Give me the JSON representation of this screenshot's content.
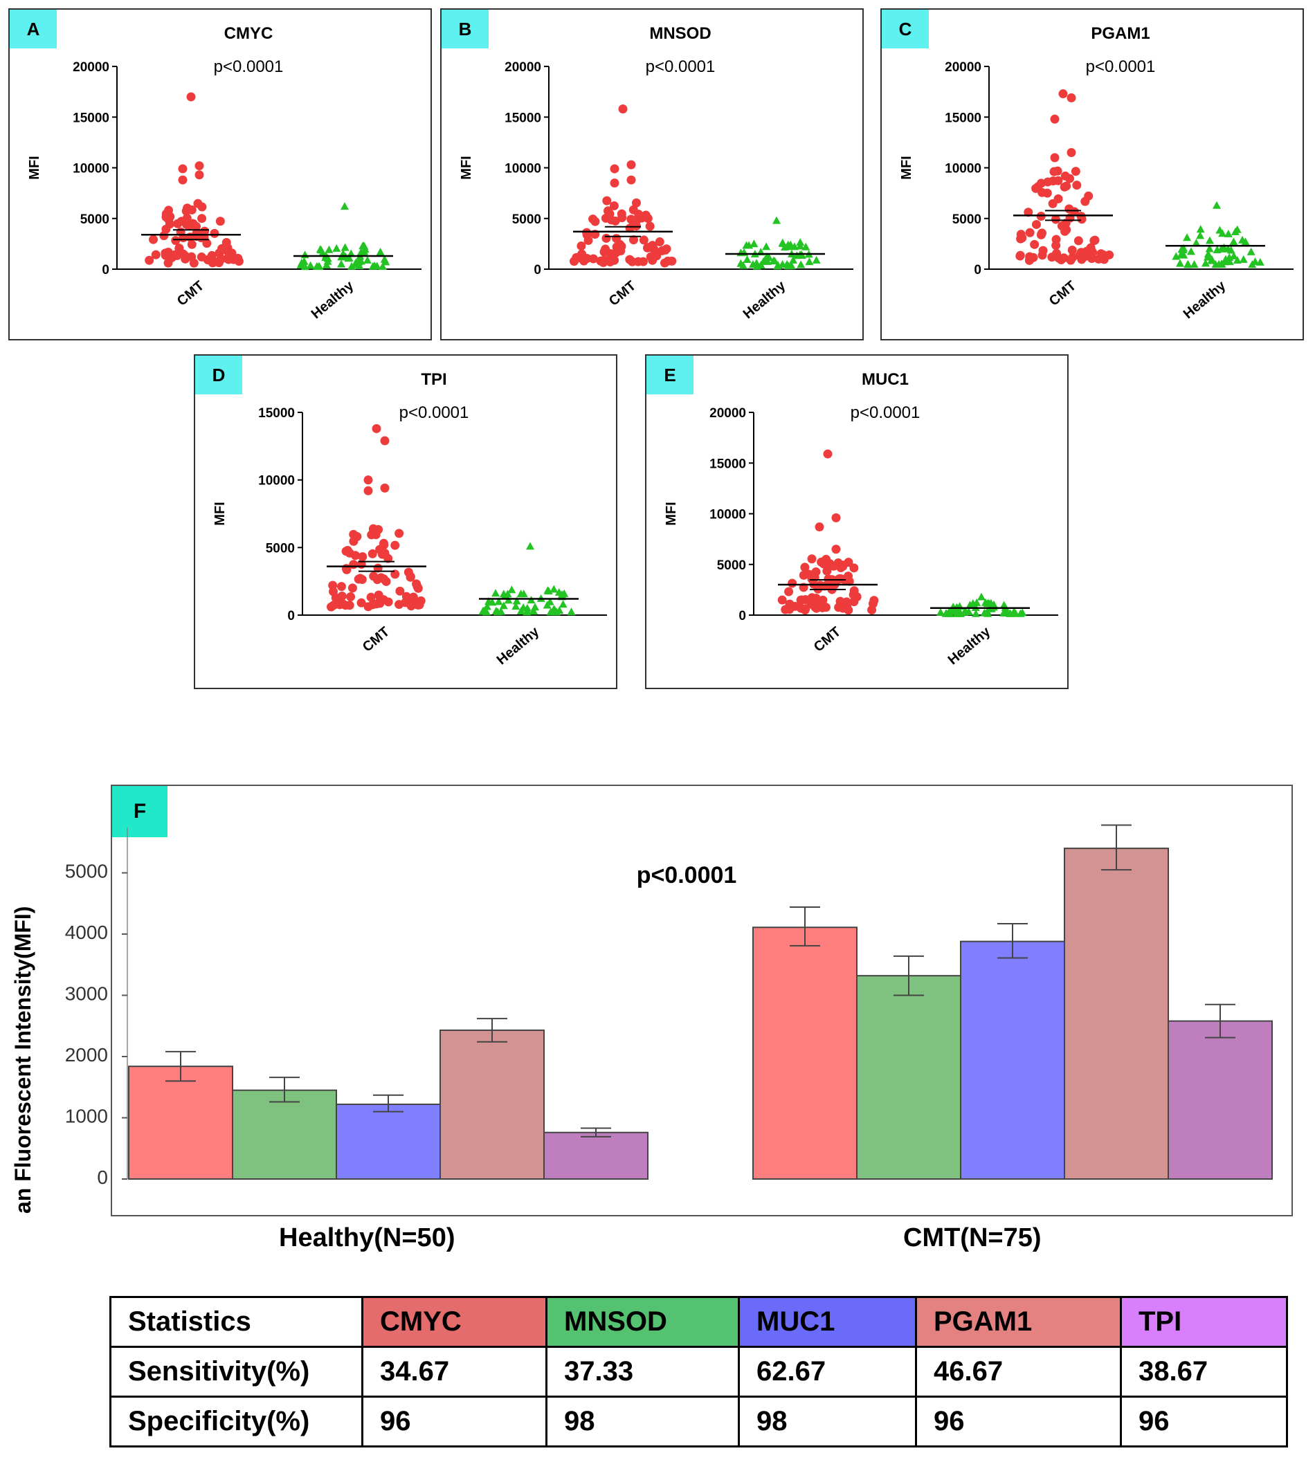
{
  "panels": [
    {
      "tag": "A",
      "title": "CMYC",
      "pvalue": "p<0.0001",
      "ylabel": "MFI",
      "yticks": [
        0,
        5000,
        10000,
        15000,
        20000
      ],
      "ymax": 20000,
      "groups": [
        "CMT",
        "Healthy"
      ],
      "cmt_mean": 3400,
      "healthy_mean": 1300,
      "cmt_outliers": [
        17000,
        10200,
        9900,
        9300,
        8800
      ],
      "healthy_max": 6200
    },
    {
      "tag": "B",
      "title": "MNSOD",
      "pvalue": "p<0.0001",
      "ylabel": "MFI",
      "yticks": [
        0,
        5000,
        10000,
        15000,
        20000
      ],
      "ymax": 20000,
      "groups": [
        "CMT",
        "Healthy"
      ],
      "cmt_mean": 3700,
      "healthy_mean": 1500,
      "cmt_outliers": [
        15800,
        10300,
        9900,
        8800,
        8500
      ],
      "healthy_max": 4800
    },
    {
      "tag": "C",
      "title": "PGAM1",
      "pvalue": "p<0.0001",
      "ylabel": "MFI",
      "yticks": [
        0,
        5000,
        10000,
        15000,
        20000
      ],
      "ymax": 20000,
      "groups": [
        "CMT",
        "Healthy"
      ],
      "cmt_mean": 5300,
      "healthy_mean": 2300,
      "cmt_outliers": [
        17300,
        16900,
        14800,
        11500,
        11000
      ],
      "healthy_max": 6300
    },
    {
      "tag": "D",
      "title": "TPI",
      "pvalue": "p<0.0001",
      "ylabel": "MFI",
      "yticks": [
        0,
        5000,
        10000,
        15000
      ],
      "ymax": 15000,
      "groups": [
        "CMT",
        "Healthy"
      ],
      "cmt_mean": 3600,
      "healthy_mean": 1200,
      "cmt_outliers": [
        13800,
        12900,
        10000,
        9400,
        9200
      ],
      "healthy_max": 5100
    },
    {
      "tag": "E",
      "title": "MUC1",
      "pvalue": "p<0.0001",
      "ylabel": "MFI",
      "yticks": [
        0,
        5000,
        10000,
        15000,
        20000
      ],
      "ymax": 20000,
      "groups": [
        "CMT",
        "Healthy"
      ],
      "cmt_mean": 3000,
      "healthy_mean": 700,
      "cmt_outliers": [
        15900,
        9600,
        8700,
        6500
      ],
      "healthy_max": 1800
    }
  ],
  "chart_data": {
    "type": "bar",
    "tag": "F",
    "pvalue": "p<0.0001",
    "ylabel": "Mean Fluorescent Intensity(MFI)",
    "ylim": [
      0,
      6000
    ],
    "yticks": [
      0,
      1000,
      2000,
      3000,
      4000,
      5000
    ],
    "groups": [
      "Healthy(N=50)",
      "CMT(N=75)"
    ],
    "series": [
      {
        "name": "CMYC",
        "color": "#ff7f7f",
        "values": [
          1840,
          4110
        ],
        "err_low": [
          1600,
          3810
        ],
        "err_high": [
          2080,
          4440
        ]
      },
      {
        "name": "MNSOD",
        "color": "#7fc17f",
        "values": [
          1450,
          3320
        ],
        "err_low": [
          1260,
          3000
        ],
        "err_high": [
          1660,
          3640
        ]
      },
      {
        "name": "MUC1",
        "color": "#7f7fff",
        "values": [
          1220,
          3880
        ],
        "err_low": [
          1100,
          3610
        ],
        "err_high": [
          1370,
          4170
        ]
      },
      {
        "name": "PGAM1",
        "color": "#d49393",
        "values": [
          2430,
          5400
        ],
        "err_low": [
          2240,
          5050
        ],
        "err_high": [
          2620,
          5780
        ]
      },
      {
        "name": "TPI",
        "color": "#bf7fbf",
        "values": [
          760,
          2580
        ],
        "err_low": [
          690,
          2310
        ],
        "err_high": [
          830,
          2850
        ]
      }
    ]
  },
  "stats_table": {
    "header": [
      "Statistics",
      "CMYC",
      "MNSOD",
      "MUC1",
      "PGAM1",
      "TPI"
    ],
    "header_colors": [
      "#ffffff",
      "#e46c6c",
      "#55c271",
      "#6b6bfa",
      "#e48282",
      "#d87ffb"
    ],
    "rows": [
      [
        "Sensitivity(%)",
        "34.67",
        "37.33",
        "62.67",
        "46.67",
        "38.67"
      ],
      [
        "Specificity(%)",
        "96",
        "98",
        "98",
        "96",
        "96"
      ]
    ]
  }
}
